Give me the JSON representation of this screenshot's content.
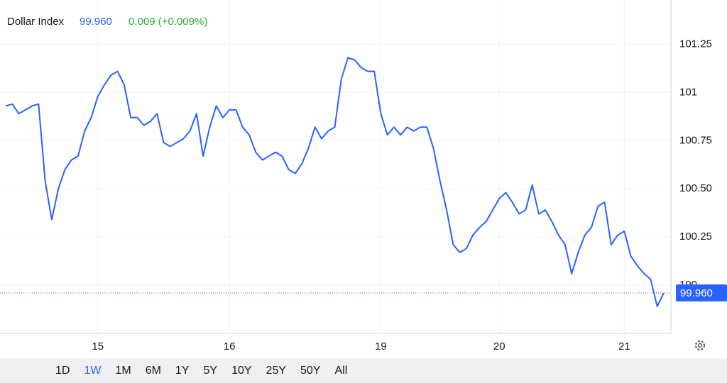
{
  "chart_data": {
    "type": "line",
    "title": "Dollar Index",
    "change": "0.009 (+0.009%)",
    "last": {
      "value": 99.96,
      "label": "99.960"
    },
    "categories": [
      null,
      null,
      null,
      null,
      null,
      null,
      null,
      null,
      null,
      null,
      null,
      null,
      null,
      null,
      "15",
      null,
      null,
      null,
      null,
      null,
      null,
      null,
      null,
      null,
      null,
      null,
      null,
      null,
      null,
      null,
      null,
      null,
      null,
      null,
      "16",
      null,
      null,
      null,
      null,
      null,
      null,
      null,
      null,
      null,
      null,
      null,
      null,
      null,
      null,
      null,
      null,
      null,
      null,
      null,
      null,
      null,
      null,
      "19",
      null,
      null,
      null,
      null,
      null,
      null,
      null,
      null,
      null,
      null,
      null,
      null,
      null,
      null,
      null,
      null,
      null,
      "20",
      null,
      null,
      null,
      null,
      null,
      null,
      null,
      null,
      null,
      null,
      null,
      null,
      null,
      null,
      null,
      null,
      null,
      null,
      "21",
      null,
      null,
      null,
      null,
      null,
      null
    ],
    "series": [
      {
        "name": "Dollar Index",
        "color": "#2962ff",
        "values": [
          100.93,
          100.94,
          100.89,
          100.91,
          100.93,
          100.94,
          100.54,
          100.34,
          100.5,
          100.6,
          100.65,
          100.67,
          100.8,
          100.87,
          100.98,
          101.04,
          101.09,
          101.11,
          101.04,
          100.87,
          100.87,
          100.83,
          100.85,
          100.89,
          100.74,
          100.72,
          100.74,
          100.76,
          100.8,
          100.89,
          100.67,
          100.82,
          100.93,
          100.87,
          100.91,
          100.91,
          100.82,
          100.78,
          100.69,
          100.65,
          100.67,
          100.69,
          100.67,
          100.6,
          100.58,
          100.63,
          100.71,
          100.82,
          100.76,
          100.8,
          100.82,
          101.07,
          101.18,
          101.17,
          101.13,
          101.11,
          101.11,
          100.89,
          100.78,
          100.82,
          100.78,
          100.82,
          100.8,
          100.82,
          100.82,
          100.71,
          100.54,
          100.39,
          100.21,
          100.17,
          100.19,
          100.26,
          100.3,
          100.33,
          100.39,
          100.45,
          100.48,
          100.43,
          100.37,
          100.39,
          100.52,
          100.37,
          100.39,
          100.33,
          100.26,
          100.21,
          100.06,
          100.17,
          100.26,
          100.3,
          100.41,
          100.43,
          100.21,
          100.26,
          100.28,
          100.15,
          100.1,
          100.06,
          100.03,
          99.89,
          99.96
        ]
      }
    ],
    "ylim": [
      99.75,
      101.48
    ],
    "yticks": [
      100,
      100.25,
      {
        "value": 100.5,
        "label": "100.50"
      },
      100.75,
      101,
      101.25
    ],
    "grid": true,
    "ranges": [
      "1D",
      "1W",
      "1M",
      "6M",
      "1Y",
      "5Y",
      "10Y",
      "25Y",
      "50Y",
      "All"
    ]
  }
}
